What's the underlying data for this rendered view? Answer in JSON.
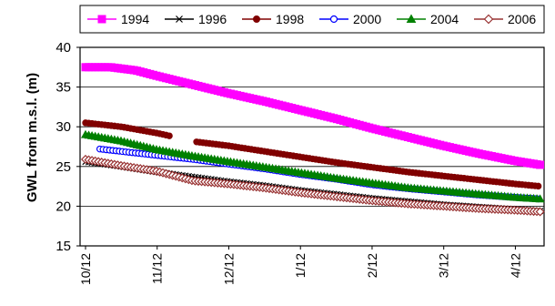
{
  "chart_data": {
    "type": "line",
    "title": "",
    "xlabel": "",
    "ylabel": "GWL from m.s.l. (m)",
    "ylim": [
      15,
      40
    ],
    "yticks": [
      15,
      20,
      25,
      30,
      35,
      40
    ],
    "x_tick_labels": [
      "10/12",
      "11/12",
      "12/12",
      "1/12",
      "2/12",
      "3/12",
      "4/12"
    ],
    "xlim": [
      0,
      6.35
    ],
    "grid": "horizontal",
    "legend_placement": "top",
    "series": [
      {
        "name": "1994",
        "color": "#ff00ff",
        "marker": "square",
        "points": [
          [
            0,
            37.5
          ],
          [
            0.35,
            37.5
          ],
          [
            0.7,
            37.1
          ],
          [
            1,
            36.4
          ],
          [
            1.5,
            35.3
          ],
          [
            2,
            34.2
          ],
          [
            2.5,
            33.2
          ],
          [
            3,
            32.1
          ],
          [
            3.5,
            31.0
          ],
          [
            4,
            29.8
          ],
          [
            4.5,
            28.7
          ],
          [
            5,
            27.6
          ],
          [
            5.5,
            26.6
          ],
          [
            6,
            25.7
          ],
          [
            6.35,
            25.2
          ]
        ]
      },
      {
        "name": "1996",
        "color": "#000000",
        "marker": "x",
        "points": [
          [
            0,
            25.6
          ],
          [
            0.5,
            25.0
          ],
          [
            1,
            24.3
          ],
          [
            1.5,
            23.7
          ],
          [
            2,
            23.1
          ],
          [
            2.5,
            22.6
          ],
          [
            3,
            22.0
          ],
          [
            3.5,
            21.5
          ],
          [
            4,
            21.0
          ],
          [
            4.5,
            20.6
          ],
          [
            5,
            20.2
          ],
          [
            5.5,
            19.9
          ],
          [
            6,
            19.6
          ],
          [
            6.35,
            19.4
          ]
        ]
      },
      {
        "name": "1998",
        "color": "#800000",
        "marker": "circle",
        "points": [
          [
            0,
            30.5
          ],
          [
            0.5,
            30.0
          ],
          [
            1,
            29.2
          ],
          [
            1.2,
            28.8
          ]
        ],
        "points_b": [
          [
            1.55,
            28.1
          ],
          [
            2,
            27.6
          ],
          [
            2.5,
            26.9
          ],
          [
            3,
            26.2
          ],
          [
            3.5,
            25.5
          ],
          [
            4,
            24.9
          ],
          [
            4.5,
            24.3
          ],
          [
            5,
            23.8
          ],
          [
            5.5,
            23.3
          ],
          [
            6,
            22.8
          ],
          [
            6.35,
            22.5
          ]
        ]
      },
      {
        "name": "2000",
        "color": "#0000ff",
        "marker": "open-circle",
        "points": [
          [
            0.2,
            27.2
          ],
          [
            0.5,
            26.9
          ],
          [
            1,
            26.4
          ],
          [
            1.5,
            25.9
          ],
          [
            2,
            25.3
          ],
          [
            2.5,
            24.7
          ],
          [
            3,
            24.0
          ],
          [
            3.5,
            23.4
          ],
          [
            4,
            22.7
          ],
          [
            4.5,
            22.2
          ],
          [
            5,
            21.8
          ],
          [
            5.5,
            21.4
          ],
          [
            6,
            21.1
          ],
          [
            6.35,
            20.9
          ]
        ]
      },
      {
        "name": "2004",
        "color": "#008000",
        "marker": "triangle",
        "points": [
          [
            0,
            29.0
          ],
          [
            0.5,
            28.2
          ],
          [
            1,
            27.1
          ],
          [
            1.5,
            26.3
          ],
          [
            2,
            25.6
          ],
          [
            2.5,
            24.9
          ],
          [
            3,
            24.2
          ],
          [
            3.5,
            23.5
          ],
          [
            4,
            22.9
          ],
          [
            4.5,
            22.3
          ],
          [
            5,
            21.9
          ],
          [
            5.5,
            21.5
          ],
          [
            6,
            21.1
          ],
          [
            6.35,
            20.9
          ]
        ]
      },
      {
        "name": "2006",
        "color": "#993333",
        "marker": "open-diamond",
        "points": [
          [
            0,
            25.9
          ],
          [
            0.5,
            25.1
          ],
          [
            1,
            24.4
          ],
          [
            1.5,
            23.2
          ],
          [
            2,
            22.8
          ],
          [
            2.5,
            22.3
          ],
          [
            3,
            21.7
          ],
          [
            3.5,
            21.2
          ],
          [
            4,
            20.7
          ],
          [
            4.5,
            20.3
          ],
          [
            5,
            20.0
          ],
          [
            5.5,
            19.7
          ],
          [
            6,
            19.5
          ],
          [
            6.35,
            19.3
          ]
        ]
      }
    ]
  }
}
